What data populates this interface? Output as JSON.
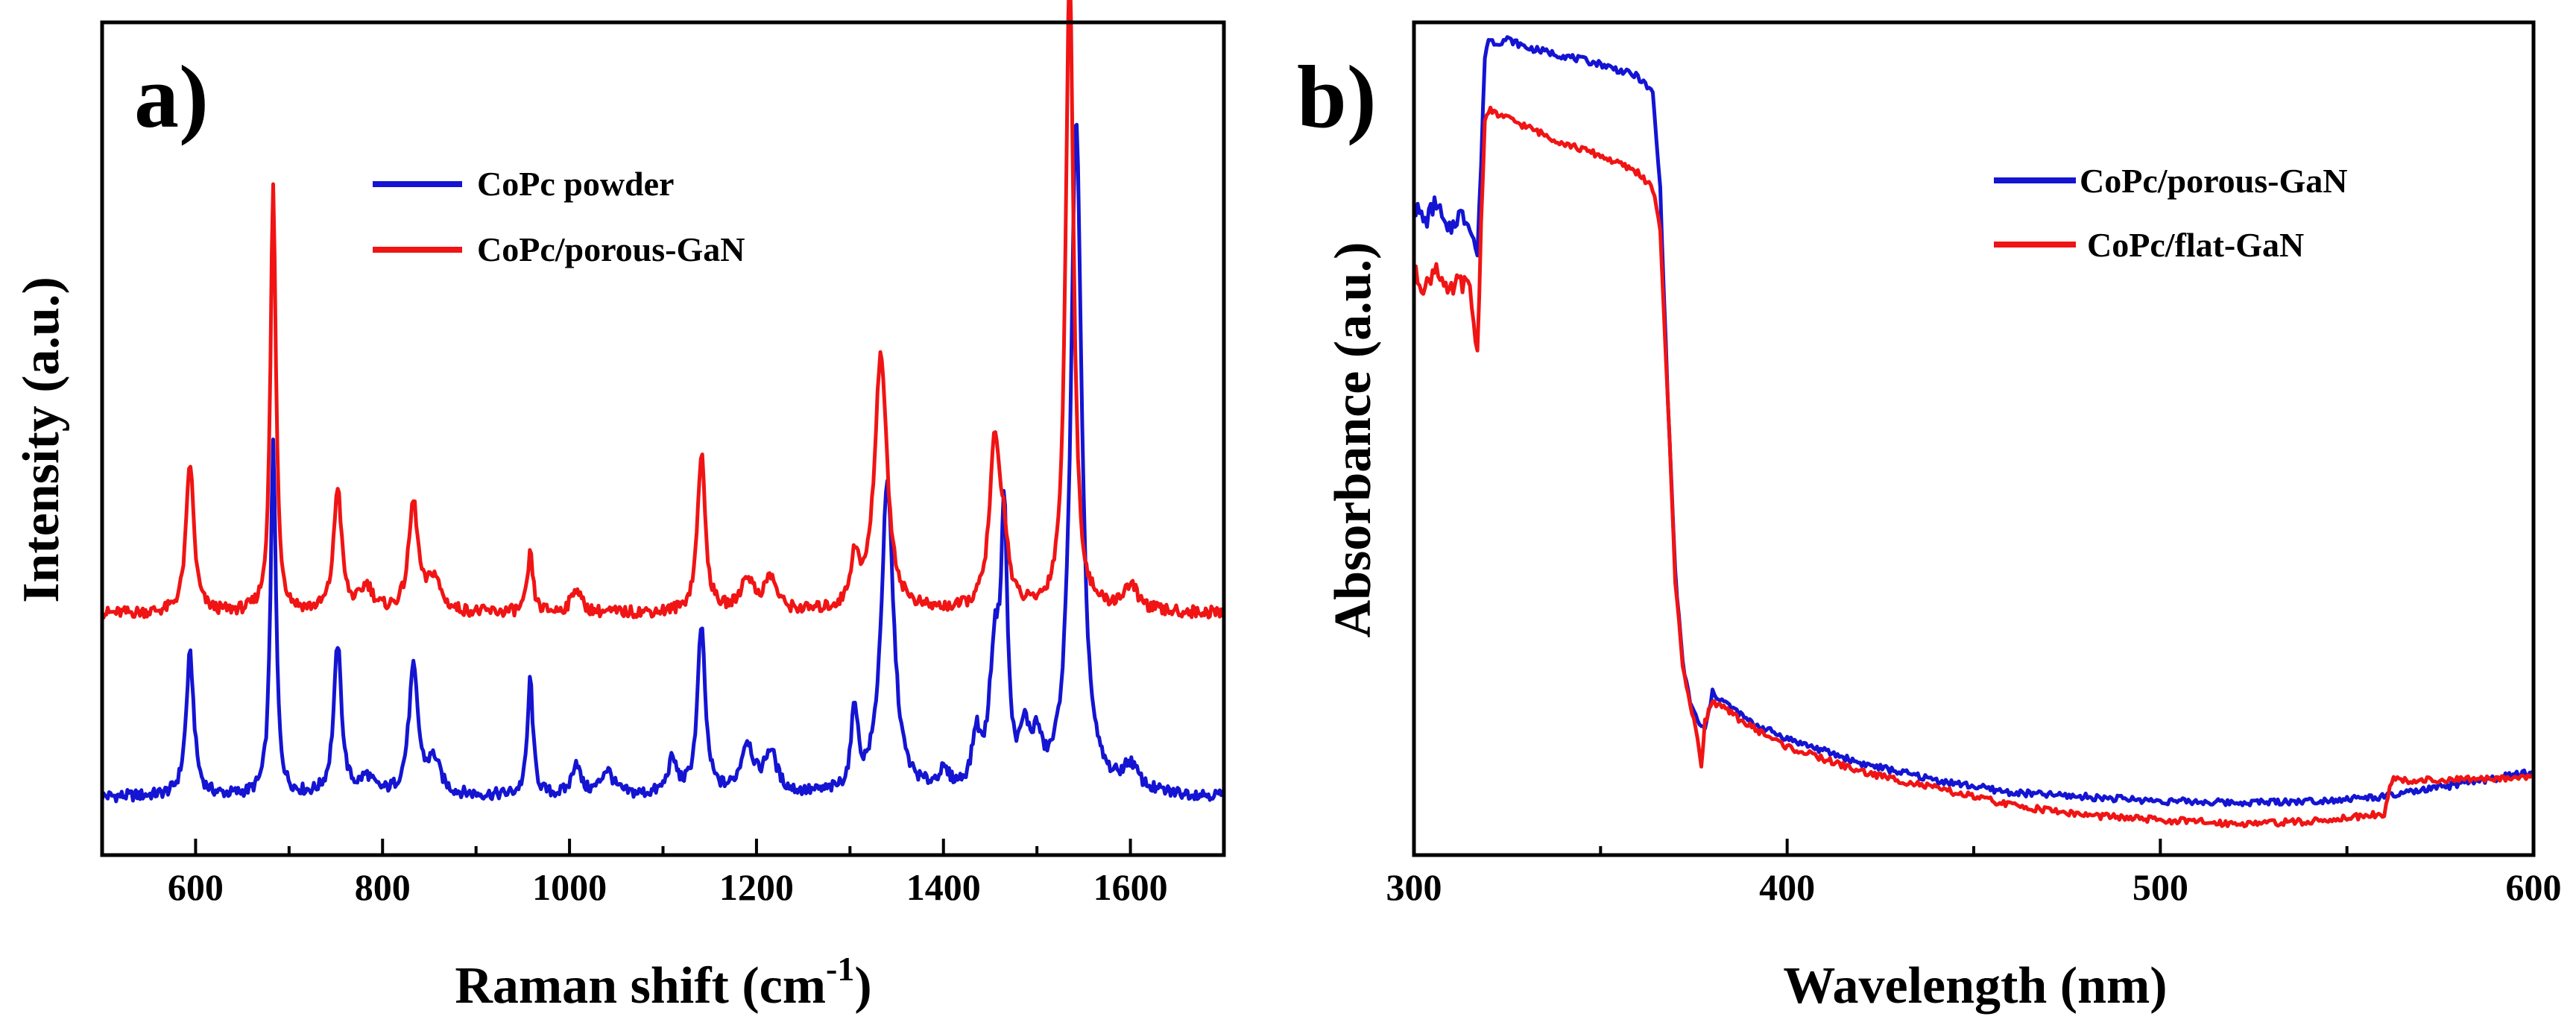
{
  "chart_data": [
    {
      "type": "line",
      "panel_label": "a)",
      "title": "",
      "xlabel_main": "Raman shift (cm",
      "xlabel_sup": "-1",
      "xlabel_close": ")",
      "ylabel": "Intensity (a.u.)",
      "xlim": [
        500,
        1700
      ],
      "ylim": [
        0,
        1
      ],
      "xticks": [
        600,
        800,
        1000,
        1200,
        1400,
        1600
      ],
      "xtick_labels": [
        "600",
        "800",
        "1000",
        "1200",
        "1400",
        "1600"
      ],
      "yticks_shown": false,
      "legend_position": "top-center",
      "series": [
        {
          "name": "CoPc powder",
          "color": "#1414d2",
          "baseline": 0.07,
          "peaks": [
            [
              594,
              0.17,
              5
            ],
            [
              683,
              0.42,
              3.5
            ],
            [
              752,
              0.18,
              5
            ],
            [
              783,
              0.02,
              8
            ],
            [
              833,
              0.15,
              6
            ],
            [
              855,
              0.04,
              8
            ],
            [
              958,
              0.14,
              3.5
            ],
            [
              1007,
              0.04,
              5
            ],
            [
              1040,
              0.03,
              8
            ],
            [
              1110,
              0.04,
              6
            ],
            [
              1141,
              0.2,
              5
            ],
            [
              1190,
              0.06,
              8
            ],
            [
              1215,
              0.05,
              8
            ],
            [
              1305,
              0.1,
              4
            ],
            [
              1340,
              0.37,
              8
            ],
            [
              1400,
              0.02,
              8
            ],
            [
              1435,
              0.06,
              5
            ],
            [
              1455,
              0.16,
              7
            ],
            [
              1465,
              0.3,
              4
            ],
            [
              1487,
              0.06,
              6
            ],
            [
              1500,
              0.05,
              6
            ],
            [
              1542,
              0.81,
              7
            ],
            [
              1600,
              0.03,
              10
            ]
          ]
        },
        {
          "name": "CoPc/porous-GaN",
          "color": "#f01414",
          "baseline": 0.29,
          "peaks": [
            [
              594,
              0.18,
              5
            ],
            [
              683,
              0.51,
              3.5
            ],
            [
              752,
              0.15,
              5
            ],
            [
              783,
              0.03,
              8
            ],
            [
              833,
              0.13,
              6
            ],
            [
              855,
              0.04,
              8
            ],
            [
              958,
              0.07,
              3.5
            ],
            [
              1007,
              0.03,
              6
            ],
            [
              1141,
              0.19,
              5
            ],
            [
              1190,
              0.04,
              8
            ],
            [
              1215,
              0.04,
              8
            ],
            [
              1305,
              0.06,
              5
            ],
            [
              1333,
              0.31,
              8
            ],
            [
              1455,
              0.2,
              7
            ],
            [
              1465,
              0.06,
              5
            ],
            [
              1535,
              0.78,
              5
            ],
            [
              1600,
              0.03,
              10
            ]
          ]
        }
      ]
    },
    {
      "type": "line",
      "panel_label": "b)",
      "title": "",
      "xlabel": "Wavelength (nm)",
      "ylabel": "Absorbance (a.u.)",
      "xlim": [
        300,
        600
      ],
      "ylim": [
        0,
        1
      ],
      "xticks": [
        300,
        400,
        500,
        600
      ],
      "xtick_labels": [
        "300",
        "400",
        "500",
        "600"
      ],
      "yticks_shown": false,
      "legend_position": "top-right",
      "series": [
        {
          "name": "CoPc/porous-GaN",
          "color": "#1414d2",
          "x": [
            300,
            303,
            306,
            309,
            312,
            315,
            317,
            318,
            319,
            320,
            322,
            325,
            330,
            340,
            350,
            360,
            364,
            366,
            368,
            370,
            372,
            374,
            376,
            378,
            380,
            390,
            400,
            420,
            440,
            460,
            480,
            500,
            520,
            540,
            560,
            580,
            600
          ],
          "y": [
            0.78,
            0.76,
            0.785,
            0.745,
            0.77,
            0.76,
            0.72,
            0.83,
            0.96,
            0.98,
            0.975,
            0.98,
            0.97,
            0.96,
            0.95,
            0.935,
            0.915,
            0.8,
            0.55,
            0.34,
            0.23,
            0.185,
            0.16,
            0.15,
            0.195,
            0.16,
            0.14,
            0.11,
            0.09,
            0.075,
            0.07,
            0.065,
            0.063,
            0.065,
            0.07,
            0.085,
            0.1
          ]
        },
        {
          "name": "CoPc/flat-GaN",
          "color": "#f01414",
          "x": [
            300,
            303,
            306,
            309,
            312,
            315,
            317,
            318,
            319,
            320,
            322,
            325,
            330,
            340,
            350,
            360,
            364,
            366,
            368,
            370,
            372,
            374,
            376,
            377,
            378,
            380,
            390,
            400,
            420,
            440,
            460,
            480,
            500,
            520,
            540,
            560,
            562,
            580,
            600
          ],
          "y": [
            0.7,
            0.68,
            0.71,
            0.67,
            0.69,
            0.68,
            0.6,
            0.76,
            0.88,
            0.895,
            0.89,
            0.885,
            0.875,
            0.855,
            0.84,
            0.82,
            0.8,
            0.75,
            0.55,
            0.33,
            0.23,
            0.18,
            0.14,
            0.11,
            0.16,
            0.185,
            0.155,
            0.13,
            0.1,
            0.08,
            0.06,
            0.048,
            0.042,
            0.038,
            0.04,
            0.05,
            0.09,
            0.09,
            0.095
          ]
        }
      ]
    }
  ]
}
